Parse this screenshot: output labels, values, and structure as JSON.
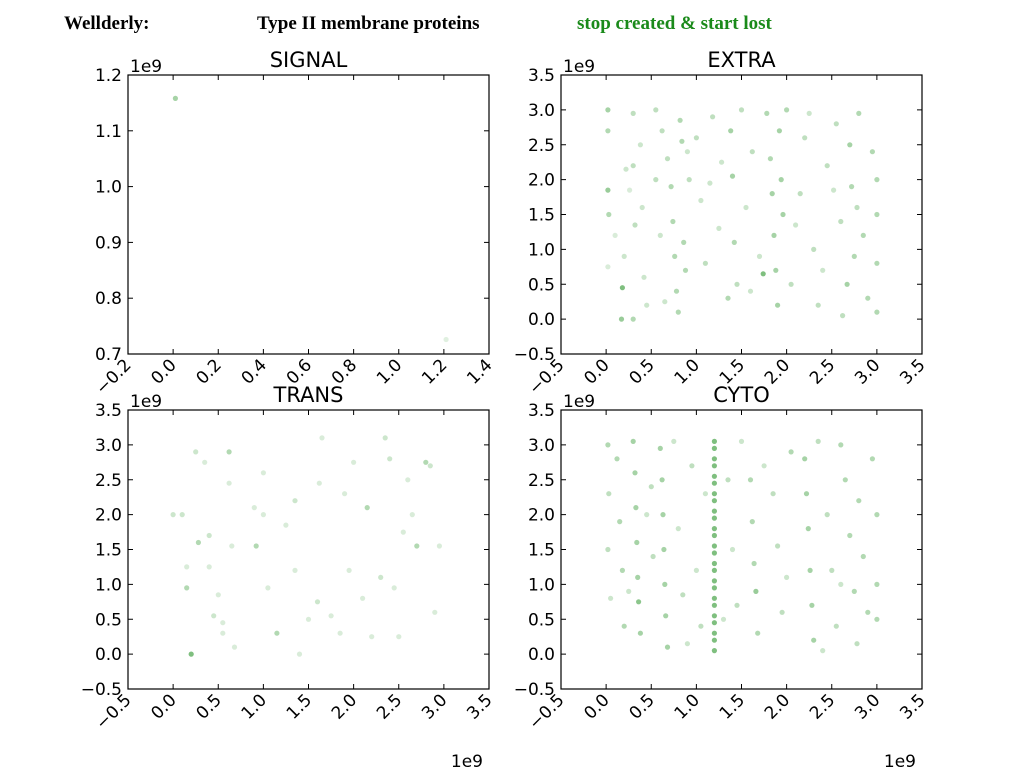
{
  "header": {
    "left": "Wellderly:",
    "middle": "Type II membrane proteins",
    "right": "stop created & start lost",
    "right_color": "#1a8a1a"
  },
  "point_color": "#008000",
  "chart_data": [
    {
      "type": "scatter",
      "title": "SIGNAL",
      "xlim": [
        -0.2,
        1.4
      ],
      "ylim": [
        0.7,
        1.2
      ],
      "xticks": [
        -0.2,
        0.0,
        0.2,
        0.4,
        0.6,
        0.8,
        1.0,
        1.2,
        1.4
      ],
      "xtick_labels": [
        "−0.2",
        "0.0",
        "0.2",
        "0.4",
        "0.6",
        "0.8",
        "1.0",
        "1.2",
        "1.4"
      ],
      "yticks": [
        0.7,
        0.8,
        0.9,
        1.0,
        1.1,
        1.2
      ],
      "ytick_labels": [
        "0.7",
        "0.8",
        "0.9",
        "1.0",
        "1.1",
        "1.2"
      ],
      "x_offset_label": "",
      "y_offset_label": "1e9",
      "points": [
        [
          0.01,
          1.158,
          0.35
        ],
        [
          1.21,
          0.726,
          0.12
        ]
      ]
    },
    {
      "type": "scatter",
      "title": "EXTRA",
      "xlim": [
        -0.5,
        3.5
      ],
      "ylim": [
        -0.5,
        3.5
      ],
      "xticks": [
        -0.5,
        0.0,
        0.5,
        1.0,
        1.5,
        2.0,
        2.5,
        3.0,
        3.5
      ],
      "xtick_labels": [
        "−0.5",
        "0.0",
        "0.5",
        "1.0",
        "1.5",
        "2.0",
        "2.5",
        "3.0",
        "3.5"
      ],
      "yticks": [
        -0.5,
        0.0,
        0.5,
        1.0,
        1.5,
        2.0,
        2.5,
        3.0,
        3.5
      ],
      "ytick_labels": [
        "−0.5",
        "0.0",
        "0.5",
        "1.0",
        "1.5",
        "2.0",
        "2.5",
        "3.0",
        "3.5"
      ],
      "x_offset_label": "",
      "y_offset_label": "1e9",
      "points": [
        [
          0.02,
          3.0,
          0.35
        ],
        [
          0.02,
          2.7,
          0.3
        ],
        [
          0.02,
          1.85,
          0.4
        ],
        [
          0.03,
          1.5,
          0.3
        ],
        [
          0.02,
          0.75,
          0.15
        ],
        [
          0.18,
          0.45,
          0.5
        ],
        [
          0.17,
          0.0,
          0.4
        ],
        [
          0.2,
          0.9,
          0.2
        ],
        [
          0.22,
          2.15,
          0.2
        ],
        [
          0.3,
          2.95,
          0.25
        ],
        [
          0.3,
          2.2,
          0.25
        ],
        [
          0.32,
          1.35,
          0.25
        ],
        [
          0.3,
          0.0,
          0.3
        ],
        [
          0.38,
          2.5,
          0.2
        ],
        [
          0.4,
          1.6,
          0.2
        ],
        [
          0.42,
          0.6,
          0.2
        ],
        [
          0.55,
          2.0,
          0.25
        ],
        [
          0.55,
          3.0,
          0.25
        ],
        [
          0.62,
          2.7,
          0.25
        ],
        [
          0.68,
          2.3,
          0.25
        ],
        [
          0.72,
          1.9,
          0.3
        ],
        [
          0.74,
          1.4,
          0.3
        ],
        [
          0.76,
          0.9,
          0.3
        ],
        [
          0.78,
          0.4,
          0.3
        ],
        [
          0.8,
          0.1,
          0.3
        ],
        [
          0.82,
          2.85,
          0.3
        ],
        [
          0.84,
          2.55,
          0.3
        ],
        [
          0.86,
          1.1,
          0.3
        ],
        [
          0.88,
          0.7,
          0.3
        ],
        [
          0.92,
          2.0,
          0.25
        ],
        [
          1.0,
          2.6,
          0.25
        ],
        [
          1.05,
          1.7,
          0.2
        ],
        [
          1.1,
          0.8,
          0.25
        ],
        [
          1.18,
          2.9,
          0.25
        ],
        [
          1.25,
          1.3,
          0.2
        ],
        [
          1.35,
          0.3,
          0.3
        ],
        [
          1.38,
          2.7,
          0.35
        ],
        [
          1.4,
          2.05,
          0.35
        ],
        [
          1.42,
          1.1,
          0.3
        ],
        [
          1.45,
          0.5,
          0.25
        ],
        [
          1.5,
          3.0,
          0.25
        ],
        [
          1.55,
          1.6,
          0.2
        ],
        [
          1.62,
          2.4,
          0.25
        ],
        [
          1.7,
          0.9,
          0.2
        ],
        [
          1.74,
          0.65,
          0.5
        ],
        [
          1.78,
          2.95,
          0.3
        ],
        [
          1.82,
          2.3,
          0.3
        ],
        [
          1.84,
          1.8,
          0.35
        ],
        [
          1.86,
          1.2,
          0.35
        ],
        [
          1.88,
          0.7,
          0.35
        ],
        [
          1.9,
          0.2,
          0.35
        ],
        [
          1.92,
          2.7,
          0.35
        ],
        [
          1.94,
          2.0,
          0.35
        ],
        [
          1.96,
          1.5,
          0.35
        ],
        [
          2.0,
          3.0,
          0.3
        ],
        [
          2.05,
          0.5,
          0.25
        ],
        [
          2.15,
          1.8,
          0.25
        ],
        [
          2.2,
          2.6,
          0.25
        ],
        [
          2.3,
          1.0,
          0.25
        ],
        [
          2.35,
          0.2,
          0.25
        ],
        [
          2.45,
          2.2,
          0.25
        ],
        [
          2.55,
          2.8,
          0.25
        ],
        [
          2.6,
          1.4,
          0.25
        ],
        [
          2.67,
          0.5,
          0.35
        ],
        [
          2.7,
          2.5,
          0.35
        ],
        [
          2.72,
          1.9,
          0.3
        ],
        [
          2.75,
          0.9,
          0.3
        ],
        [
          2.8,
          2.95,
          0.3
        ],
        [
          2.85,
          1.2,
          0.3
        ],
        [
          2.9,
          0.3,
          0.3
        ],
        [
          2.95,
          2.4,
          0.3
        ],
        [
          3.0,
          2.0,
          0.3
        ],
        [
          3.0,
          1.5,
          0.3
        ],
        [
          3.0,
          0.8,
          0.3
        ],
        [
          3.0,
          0.1,
          0.3
        ],
        [
          0.1,
          1.2,
          0.15
        ],
        [
          0.26,
          1.85,
          0.15
        ],
        [
          0.45,
          0.2,
          0.2
        ],
        [
          0.6,
          1.2,
          0.2
        ],
        [
          0.65,
          0.25,
          0.2
        ],
        [
          0.9,
          2.4,
          0.2
        ],
        [
          1.15,
          1.95,
          0.2
        ],
        [
          1.28,
          2.25,
          0.2
        ],
        [
          1.6,
          0.4,
          0.2
        ],
        [
          2.1,
          1.35,
          0.2
        ],
        [
          2.25,
          2.95,
          0.2
        ],
        [
          2.4,
          0.7,
          0.2
        ],
        [
          2.52,
          1.85,
          0.2
        ],
        [
          2.62,
          0.05,
          0.25
        ],
        [
          2.78,
          1.6,
          0.25
        ]
      ]
    },
    {
      "type": "scatter",
      "title": "TRANS",
      "xlim": [
        -0.5,
        3.5
      ],
      "ylim": [
        -0.5,
        3.5
      ],
      "xticks": [
        -0.5,
        0.0,
        0.5,
        1.0,
        1.5,
        2.0,
        2.5,
        3.0,
        3.5
      ],
      "xtick_labels": [
        "−0.5",
        "0.0",
        "0.5",
        "1.0",
        "1.5",
        "2.0",
        "2.5",
        "3.0",
        "3.5"
      ],
      "yticks": [
        -0.5,
        0.0,
        0.5,
        1.0,
        1.5,
        2.0,
        2.5,
        3.0,
        3.5
      ],
      "ytick_labels": [
        "−0.5",
        "0.0",
        "0.5",
        "1.0",
        "1.5",
        "2.0",
        "2.5",
        "3.0",
        "3.5"
      ],
      "x_offset_label": "1e9",
      "y_offset_label": "1e9",
      "points": [
        [
          0.0,
          2.0,
          0.2
        ],
        [
          0.1,
          2.0,
          0.2
        ],
        [
          0.15,
          1.25,
          0.15
        ],
        [
          0.15,
          0.95,
          0.3
        ],
        [
          0.2,
          0.0,
          0.5
        ],
        [
          0.25,
          2.9,
          0.2
        ],
        [
          0.28,
          1.6,
          0.3
        ],
        [
          0.35,
          2.75,
          0.15
        ],
        [
          0.4,
          1.7,
          0.2
        ],
        [
          0.4,
          1.25,
          0.15
        ],
        [
          0.45,
          0.55,
          0.2
        ],
        [
          0.55,
          0.3,
          0.15
        ],
        [
          0.55,
          0.45,
          0.15
        ],
        [
          0.62,
          2.9,
          0.3
        ],
        [
          0.62,
          2.45,
          0.15
        ],
        [
          0.65,
          1.55,
          0.15
        ],
        [
          0.68,
          0.1,
          0.15
        ],
        [
          0.9,
          2.1,
          0.15
        ],
        [
          0.92,
          1.55,
          0.3
        ],
        [
          1.0,
          2.6,
          0.15
        ],
        [
          1.0,
          2.0,
          0.15
        ],
        [
          1.05,
          0.95,
          0.15
        ],
        [
          1.15,
          0.3,
          0.3
        ],
        [
          1.35,
          2.2,
          0.2
        ],
        [
          1.35,
          1.2,
          0.15
        ],
        [
          1.4,
          0.0,
          0.15
        ],
        [
          1.6,
          0.75,
          0.2
        ],
        [
          1.62,
          2.45,
          0.15
        ],
        [
          1.65,
          3.1,
          0.15
        ],
        [
          1.75,
          0.55,
          0.15
        ],
        [
          1.85,
          0.3,
          0.15
        ],
        [
          1.9,
          2.3,
          0.15
        ],
        [
          1.95,
          1.2,
          0.15
        ],
        [
          2.0,
          2.75,
          0.15
        ],
        [
          2.1,
          0.8,
          0.15
        ],
        [
          2.15,
          2.1,
          0.3
        ],
        [
          2.3,
          1.1,
          0.2
        ],
        [
          2.35,
          3.1,
          0.2
        ],
        [
          2.4,
          2.8,
          0.2
        ],
        [
          2.45,
          0.95,
          0.15
        ],
        [
          2.5,
          0.25,
          0.15
        ],
        [
          2.55,
          1.75,
          0.15
        ],
        [
          2.6,
          2.5,
          0.15
        ],
        [
          2.65,
          2.0,
          0.15
        ],
        [
          2.7,
          1.55,
          0.3
        ],
        [
          2.8,
          2.75,
          0.3
        ],
        [
          2.85,
          2.7,
          0.2
        ],
        [
          2.9,
          0.6,
          0.15
        ],
        [
          2.95,
          1.55,
          0.15
        ],
        [
          1.5,
          0.5,
          0.15
        ],
        [
          0.5,
          0.85,
          0.15
        ],
        [
          1.25,
          1.85,
          0.15
        ],
        [
          2.2,
          0.25,
          0.15
        ]
      ]
    },
    {
      "type": "scatter",
      "title": "CYTO",
      "xlim": [
        -0.5,
        3.5
      ],
      "ylim": [
        -0.5,
        3.5
      ],
      "xticks": [
        -0.5,
        0.0,
        0.5,
        1.0,
        1.5,
        2.0,
        2.5,
        3.0,
        3.5
      ],
      "xtick_labels": [
        "−0.5",
        "0.0",
        "0.5",
        "1.0",
        "1.5",
        "2.0",
        "2.5",
        "3.0",
        "3.5"
      ],
      "yticks": [
        -0.5,
        0.0,
        0.5,
        1.0,
        1.5,
        2.0,
        2.5,
        3.0,
        3.5
      ],
      "ytick_labels": [
        "−0.5",
        "0.0",
        "0.5",
        "1.0",
        "1.5",
        "2.0",
        "2.5",
        "3.0",
        "3.5"
      ],
      "x_offset_label": "1e9",
      "y_offset_label": "1e9",
      "points": [
        [
          1.2,
          3.05,
          0.5
        ],
        [
          1.2,
          2.8,
          0.5
        ],
        [
          1.2,
          2.55,
          0.5
        ],
        [
          1.2,
          2.3,
          0.5
        ],
        [
          1.2,
          2.05,
          0.5
        ],
        [
          1.2,
          1.8,
          0.5
        ],
        [
          1.2,
          1.55,
          0.5
        ],
        [
          1.2,
          1.3,
          0.5
        ],
        [
          1.2,
          1.05,
          0.5
        ],
        [
          1.2,
          0.8,
          0.5
        ],
        [
          1.2,
          0.55,
          0.5
        ],
        [
          1.2,
          0.3,
          0.5
        ],
        [
          1.2,
          0.05,
          0.5
        ],
        [
          1.2,
          2.95,
          0.5
        ],
        [
          1.2,
          2.7,
          0.5
        ],
        [
          1.2,
          2.45,
          0.5
        ],
        [
          1.2,
          2.2,
          0.5
        ],
        [
          1.2,
          1.95,
          0.5
        ],
        [
          1.2,
          1.7,
          0.5
        ],
        [
          1.2,
          1.45,
          0.5
        ],
        [
          1.2,
          1.2,
          0.5
        ],
        [
          1.2,
          0.95,
          0.5
        ],
        [
          1.2,
          0.7,
          0.5
        ],
        [
          1.2,
          0.45,
          0.5
        ],
        [
          1.2,
          0.2,
          0.5
        ],
        [
          0.02,
          3.0,
          0.3
        ],
        [
          0.03,
          2.3,
          0.25
        ],
        [
          0.02,
          1.5,
          0.25
        ],
        [
          0.05,
          0.8,
          0.2
        ],
        [
          0.12,
          2.8,
          0.3
        ],
        [
          0.15,
          1.9,
          0.3
        ],
        [
          0.18,
          1.2,
          0.3
        ],
        [
          0.2,
          0.4,
          0.3
        ],
        [
          0.3,
          3.05,
          0.35
        ],
        [
          0.32,
          2.6,
          0.35
        ],
        [
          0.33,
          2.1,
          0.35
        ],
        [
          0.34,
          1.6,
          0.35
        ],
        [
          0.35,
          1.1,
          0.35
        ],
        [
          0.36,
          0.75,
          0.45
        ],
        [
          0.38,
          0.3,
          0.35
        ],
        [
          0.5,
          2.4,
          0.25
        ],
        [
          0.52,
          1.4,
          0.25
        ],
        [
          0.6,
          2.95,
          0.35
        ],
        [
          0.62,
          2.5,
          0.35
        ],
        [
          0.63,
          2.0,
          0.35
        ],
        [
          0.64,
          1.5,
          0.35
        ],
        [
          0.65,
          1.0,
          0.35
        ],
        [
          0.66,
          0.55,
          0.35
        ],
        [
          0.68,
          0.1,
          0.35
        ],
        [
          0.8,
          1.8,
          0.2
        ],
        [
          0.85,
          0.85,
          0.25
        ],
        [
          0.95,
          2.7,
          0.25
        ],
        [
          1.0,
          1.2,
          0.2
        ],
        [
          1.05,
          0.4,
          0.25
        ],
        [
          1.35,
          2.5,
          0.25
        ],
        [
          1.4,
          1.5,
          0.2
        ],
        [
          1.45,
          0.7,
          0.25
        ],
        [
          1.5,
          3.05,
          0.2
        ],
        [
          1.6,
          2.5,
          0.3
        ],
        [
          1.62,
          1.9,
          0.3
        ],
        [
          1.64,
          1.3,
          0.3
        ],
        [
          1.66,
          0.9,
          0.4
        ],
        [
          1.68,
          0.3,
          0.3
        ],
        [
          1.85,
          2.3,
          0.25
        ],
        [
          1.9,
          1.55,
          0.25
        ],
        [
          1.95,
          0.6,
          0.25
        ],
        [
          2.05,
          2.9,
          0.3
        ],
        [
          2.2,
          2.8,
          0.35
        ],
        [
          2.22,
          2.3,
          0.35
        ],
        [
          2.24,
          1.8,
          0.35
        ],
        [
          2.26,
          1.2,
          0.35
        ],
        [
          2.28,
          0.7,
          0.35
        ],
        [
          2.3,
          0.2,
          0.35
        ],
        [
          2.45,
          2.0,
          0.25
        ],
        [
          2.5,
          1.2,
          0.25
        ],
        [
          2.55,
          0.4,
          0.25
        ],
        [
          2.6,
          3.0,
          0.3
        ],
        [
          2.65,
          2.5,
          0.3
        ],
        [
          2.7,
          1.7,
          0.3
        ],
        [
          2.75,
          0.9,
          0.3
        ],
        [
          2.8,
          2.2,
          0.3
        ],
        [
          2.85,
          1.4,
          0.3
        ],
        [
          2.9,
          0.6,
          0.3
        ],
        [
          2.95,
          2.8,
          0.3
        ],
        [
          3.0,
          2.0,
          0.3
        ],
        [
          3.0,
          1.0,
          0.3
        ],
        [
          3.0,
          0.5,
          0.3
        ],
        [
          0.25,
          0.9,
          0.2
        ],
        [
          0.45,
          2.0,
          0.2
        ],
        [
          0.75,
          3.05,
          0.2
        ],
        [
          0.9,
          0.15,
          0.2
        ],
        [
          1.1,
          2.3,
          0.2
        ],
        [
          1.3,
          0.5,
          0.2
        ],
        [
          1.75,
          2.7,
          0.2
        ],
        [
          2.0,
          1.1,
          0.2
        ],
        [
          2.35,
          3.05,
          0.25
        ],
        [
          2.4,
          0.05,
          0.2
        ],
        [
          2.6,
          1.0,
          0.2
        ],
        [
          2.78,
          0.15,
          0.25
        ]
      ]
    }
  ]
}
